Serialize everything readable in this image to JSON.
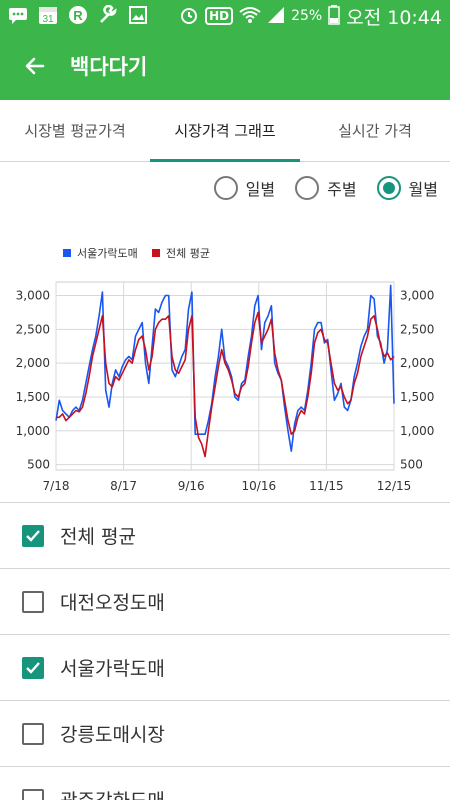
{
  "status_bar": {
    "calendar_day": "31",
    "battery": "25%",
    "time": "오전 10:44",
    "hd": "HD"
  },
  "app_bar": {
    "title": "백다다기"
  },
  "tabs": [
    {
      "label": "시장별 평균가격",
      "active": false
    },
    {
      "label": "시장가격 그래프",
      "active": true
    },
    {
      "label": "실시간 가격",
      "active": false
    }
  ],
  "period_options": [
    {
      "label": "일별",
      "selected": false
    },
    {
      "label": "주별",
      "selected": false
    },
    {
      "label": "월별",
      "selected": true
    }
  ],
  "chart_data": {
    "type": "line",
    "legend": [
      "서울가락도매",
      "전체 평균"
    ],
    "legend_position": "top-left",
    "x_tick_labels": [
      "7/18",
      "8/17",
      "9/16",
      "10/16",
      "11/15",
      "12/15"
    ],
    "y_tick_labels": [
      "500",
      "1,000",
      "1,500",
      "2,000",
      "2,500",
      "3,000"
    ],
    "ylim": [
      420,
      3200
    ],
    "grid": true,
    "colors": [
      "#1a56f0",
      "#c8101e"
    ],
    "series": [
      {
        "name": "서울가락도매",
        "values": [
          1150,
          1450,
          1300,
          1250,
          1200,
          1300,
          1350,
          1300,
          1450,
          1700,
          1950,
          2200,
          2400,
          2700,
          3050,
          1600,
          1350,
          1700,
          1900,
          1800,
          1950,
          2050,
          2100,
          2050,
          2400,
          2500,
          2600,
          2000,
          1700,
          2250,
          2800,
          2750,
          2900,
          3000,
          3000,
          1900,
          1800,
          1950,
          2100,
          2200,
          2800,
          3050,
          950,
          950,
          950,
          950,
          1150,
          1400,
          1800,
          2100,
          2500,
          2050,
          1950,
          1800,
          1500,
          1450,
          1700,
          1750,
          2100,
          2400,
          2850,
          3000,
          2200,
          2600,
          2700,
          2850,
          2000,
          1850,
          1750,
          1350,
          1000,
          700,
          1100,
          1300,
          1350,
          1300,
          1600,
          2000,
          2500,
          2600,
          2600,
          2300,
          2350,
          1900,
          1450,
          1550,
          1700,
          1350,
          1300,
          1450,
          1800,
          2000,
          2250,
          2400,
          2500,
          3000,
          2950,
          2400,
          2300,
          2000,
          2200,
          3150,
          1400
        ]
      },
      {
        "name": "전체 평균",
        "values": [
          1200,
          1200,
          1250,
          1150,
          1200,
          1250,
          1300,
          1280,
          1350,
          1550,
          1800,
          2100,
          2300,
          2500,
          2700,
          2000,
          1700,
          1650,
          1800,
          1750,
          1850,
          1950,
          2050,
          2000,
          2200,
          2350,
          2400,
          2200,
          1900,
          2100,
          2500,
          2600,
          2650,
          2650,
          2700,
          2100,
          1900,
          1850,
          1950,
          2050,
          2500,
          2700,
          1200,
          900,
          800,
          620,
          1000,
          1350,
          1650,
          1950,
          2200,
          2000,
          1900,
          1750,
          1550,
          1500,
          1650,
          1700,
          1950,
          2300,
          2600,
          2750,
          2300,
          2400,
          2500,
          2650,
          2150,
          1900,
          1750,
          1450,
          1150,
          950,
          1000,
          1200,
          1300,
          1250,
          1500,
          1850,
          2300,
          2450,
          2500,
          2350,
          2300,
          2000,
          1700,
          1600,
          1650,
          1500,
          1400,
          1450,
          1700,
          1850,
          2100,
          2250,
          2400,
          2650,
          2700,
          2500,
          2250,
          2100,
          2150,
          2050,
          2100
        ]
      }
    ]
  },
  "markets": [
    {
      "label": "전체 평균",
      "checked": true
    },
    {
      "label": "대전오정도매",
      "checked": false
    },
    {
      "label": "서울가락도매",
      "checked": true
    },
    {
      "label": "강릉도매시장",
      "checked": false
    },
    {
      "label": "광주각화도매",
      "checked": false
    }
  ]
}
